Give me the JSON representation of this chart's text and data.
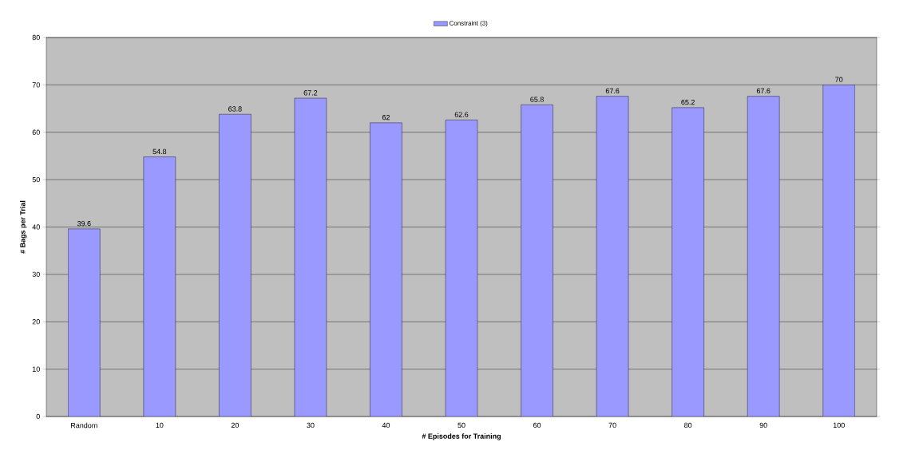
{
  "chart_data": {
    "type": "bar",
    "xlabel": "# Episodes for Training",
    "ylabel": "# Bags per Trial",
    "categories": [
      "Random",
      "10",
      "20",
      "30",
      "40",
      "50",
      "60",
      "70",
      "80",
      "90",
      "100"
    ],
    "series": [
      {
        "name": "Constraint (3)",
        "color": "#9999ff",
        "values": [
          39.6,
          54.8,
          63.8,
          67.2,
          62,
          62.6,
          65.8,
          67.6,
          65.2,
          67.6,
          70
        ]
      }
    ],
    "ylim": [
      0,
      80
    ],
    "yticks": [
      0,
      10,
      20,
      30,
      40,
      50,
      60,
      70,
      80
    ],
    "grid": "y",
    "legend": "top",
    "data_labels": true
  }
}
